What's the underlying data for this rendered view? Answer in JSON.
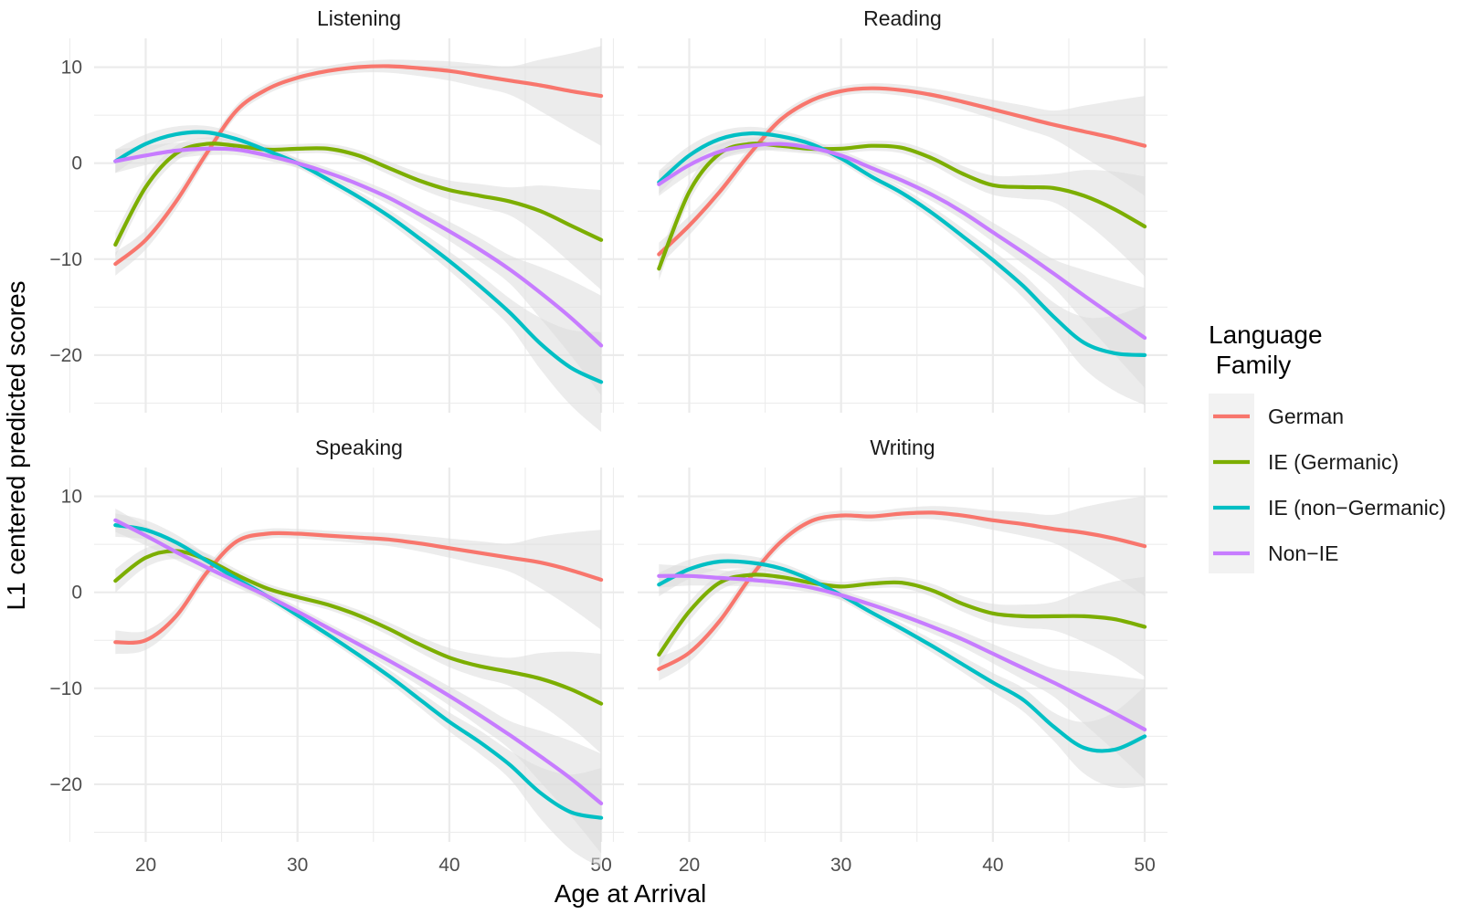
{
  "chart_data": {
    "type": "line",
    "xlabel": "Age at Arrival",
    "ylabel": "L1 centered predicted scores",
    "xlim": [
      16.6,
      51.5
    ],
    "ylim": [
      -26,
      13
    ],
    "x_ticks": [
      20,
      30,
      40,
      50
    ],
    "y_ticks": [
      10,
      0,
      -10,
      -20
    ],
    "y_tick_labels": [
      "10",
      "0",
      "−10",
      "−20"
    ],
    "grid": true,
    "confidence_bands": true,
    "legend": {
      "title": "Language\n Family",
      "placement": "right",
      "entries": [
        "German",
        "IE (Germanic)",
        "IE (non−Germanic)",
        "Non−IE"
      ]
    },
    "colors": {
      "German": "#F8766D",
      "IE (Germanic)": "#7CAE00",
      "IE (non−Germanic)": "#00BFC4",
      "Non−IE": "#C77CFF",
      "band": "#dcdcdc",
      "grid": "#ebebeb"
    },
    "panels": [
      {
        "title": "Listening",
        "series": [
          {
            "name": "German",
            "x": [
              18,
              20,
              22,
              24,
              26,
              28,
              30,
              32,
              34,
              36,
              38,
              40,
              42,
              44,
              46,
              48,
              50
            ],
            "y": [
              -10.5,
              -8,
              -4,
              1,
              5.5,
              7.7,
              8.9,
              9.6,
              10,
              10.1,
              9.9,
              9.6,
              9.1,
              8.6,
              8.1,
              7.5,
              7
            ]
          },
          {
            "name": "IE (Germanic)",
            "x": [
              18,
              20,
              22,
              24,
              26,
              28,
              30,
              32,
              34,
              36,
              38,
              40,
              42,
              44,
              46,
              48,
              50
            ],
            "y": [
              -8.5,
              -2.5,
              1,
              2,
              1.8,
              1.4,
              1.5,
              1.5,
              0.8,
              -0.5,
              -1.8,
              -2.8,
              -3.4,
              -4,
              -5,
              -6.5,
              -8
            ]
          },
          {
            "name": "IE (non−Germanic)",
            "x": [
              18,
              20,
              22,
              24,
              26,
              28,
              30,
              32,
              34,
              36,
              38,
              40,
              42,
              44,
              46,
              48,
              50
            ],
            "y": [
              0.2,
              2,
              3,
              3.2,
              2.5,
              1.3,
              0,
              -1.7,
              -3.5,
              -5.5,
              -7.8,
              -10.2,
              -12.8,
              -15.6,
              -18.8,
              -21.3,
              -22.8
            ]
          },
          {
            "name": "Non−IE",
            "x": [
              18,
              20,
              22,
              24,
              26,
              28,
              30,
              32,
              34,
              36,
              38,
              40,
              42,
              44,
              46,
              48,
              50
            ],
            "y": [
              0.2,
              0.8,
              1.3,
              1.5,
              1.4,
              0.8,
              0,
              -1,
              -2.2,
              -3.6,
              -5.3,
              -7.1,
              -9,
              -11.1,
              -13.5,
              -16.1,
              -19
            ]
          }
        ]
      },
      {
        "title": "Reading",
        "series": [
          {
            "name": "German",
            "x": [
              18,
              20,
              22,
              24,
              26,
              28,
              30,
              32,
              34,
              36,
              38,
              40,
              42,
              44,
              46,
              48,
              50
            ],
            "y": [
              -9.5,
              -6.5,
              -3,
              1,
              4.5,
              6.5,
              7.5,
              7.8,
              7.6,
              7.1,
              6.4,
              5.6,
              4.8,
              4,
              3.3,
              2.6,
              1.8
            ]
          },
          {
            "name": "IE (Germanic)",
            "x": [
              18,
              20,
              22,
              24,
              26,
              28,
              30,
              32,
              34,
              36,
              38,
              40,
              42,
              44,
              46,
              48,
              50
            ],
            "y": [
              -11,
              -3,
              1,
              2,
              1.8,
              1.5,
              1.5,
              1.8,
              1.6,
              0.5,
              -1.1,
              -2.3,
              -2.5,
              -2.6,
              -3.4,
              -4.8,
              -6.6
            ]
          },
          {
            "name": "IE (non−Germanic)",
            "x": [
              18,
              20,
              22,
              24,
              26,
              28,
              30,
              32,
              34,
              36,
              38,
              40,
              42,
              44,
              46,
              48,
              50
            ],
            "y": [
              -2,
              0.8,
              2.5,
              3.1,
              2.8,
              2,
              0.5,
              -1.4,
              -3.1,
              -5.2,
              -7.6,
              -10.1,
              -12.8,
              -16,
              -18.7,
              -19.8,
              -20
            ]
          },
          {
            "name": "Non−IE",
            "x": [
              18,
              20,
              22,
              24,
              26,
              28,
              30,
              32,
              34,
              36,
              38,
              40,
              42,
              44,
              46,
              48,
              50
            ],
            "y": [
              -2.2,
              -0.2,
              1.2,
              1.8,
              2,
              1.6,
              0.8,
              -0.5,
              -1.8,
              -3.3,
              -5.1,
              -7.2,
              -9.3,
              -11.5,
              -13.8,
              -16,
              -18.2
            ]
          }
        ]
      },
      {
        "title": "Speaking",
        "series": [
          {
            "name": "German",
            "x": [
              18,
              20,
              22,
              24,
              26,
              28,
              30,
              32,
              34,
              36,
              38,
              40,
              42,
              44,
              46,
              48,
              50
            ],
            "y": [
              -5.2,
              -5,
              -2.5,
              2,
              5.3,
              6.1,
              6.1,
              5.9,
              5.7,
              5.5,
              5.1,
              4.6,
              4.1,
              3.6,
              3.1,
              2.3,
              1.3
            ]
          },
          {
            "name": "IE (Germanic)",
            "x": [
              18,
              20,
              22,
              24,
              26,
              28,
              30,
              32,
              34,
              36,
              38,
              40,
              42,
              44,
              46,
              48,
              50
            ],
            "y": [
              1.2,
              3.6,
              4.3,
              3.4,
              1.8,
              0.4,
              -0.5,
              -1.3,
              -2.4,
              -3.8,
              -5.4,
              -6.8,
              -7.7,
              -8.3,
              -9,
              -10.1,
              -11.6
            ]
          },
          {
            "name": "IE (non−Germanic)",
            "x": [
              18,
              20,
              22,
              24,
              26,
              28,
              30,
              32,
              34,
              36,
              38,
              40,
              42,
              44,
              46,
              48,
              50
            ],
            "y": [
              7,
              6.5,
              5.2,
              3.3,
              1.4,
              -0.4,
              -2.4,
              -4.4,
              -6.5,
              -8.7,
              -11.1,
              -13.5,
              -15.6,
              -18,
              -20.9,
              -22.9,
              -23.5
            ]
          },
          {
            "name": "Non−IE",
            "x": [
              18,
              20,
              22,
              24,
              26,
              28,
              30,
              32,
              34,
              36,
              38,
              40,
              42,
              44,
              46,
              48,
              50
            ],
            "y": [
              7.5,
              5.9,
              4.2,
              2.6,
              1.1,
              -0.4,
              -2,
              -3.7,
              -5.4,
              -7.1,
              -8.9,
              -10.8,
              -12.8,
              -14.9,
              -17.1,
              -19.4,
              -22
            ]
          }
        ]
      },
      {
        "title": "Writing",
        "series": [
          {
            "name": "German",
            "x": [
              18,
              20,
              22,
              24,
              26,
              28,
              30,
              32,
              34,
              36,
              38,
              40,
              42,
              44,
              46,
              48,
              50
            ],
            "y": [
              -8,
              -6.3,
              -3,
              1.5,
              5.2,
              7.4,
              8,
              7.9,
              8.2,
              8.3,
              8,
              7.5,
              7.1,
              6.6,
              6.2,
              5.6,
              4.8
            ]
          },
          {
            "name": "IE (Germanic)",
            "x": [
              18,
              20,
              22,
              24,
              26,
              28,
              30,
              32,
              34,
              36,
              38,
              40,
              42,
              44,
              46,
              48,
              50
            ],
            "y": [
              -6.5,
              -2,
              1,
              1.8,
              1.6,
              1,
              0.6,
              0.9,
              1,
              0.2,
              -1.2,
              -2.2,
              -2.5,
              -2.5,
              -2.5,
              -2.8,
              -3.6
            ]
          },
          {
            "name": "IE (non−Germanic)",
            "x": [
              18,
              20,
              22,
              24,
              26,
              28,
              30,
              32,
              34,
              36,
              38,
              40,
              42,
              44,
              46,
              48,
              50
            ],
            "y": [
              0.8,
              2.4,
              3.2,
              3.1,
              2.5,
              1.3,
              -0.3,
              -2.1,
              -3.8,
              -5.6,
              -7.5,
              -9.4,
              -11.2,
              -14,
              -16.2,
              -16.4,
              -15
            ]
          },
          {
            "name": "Non−IE",
            "x": [
              18,
              20,
              22,
              24,
              26,
              28,
              30,
              32,
              34,
              36,
              38,
              40,
              42,
              44,
              46,
              48,
              50
            ],
            "y": [
              1.7,
              1.7,
              1.5,
              1.3,
              1,
              0.5,
              -0.3,
              -1.3,
              -2.4,
              -3.6,
              -4.9,
              -6.4,
              -7.9,
              -9.4,
              -11,
              -12.6,
              -14.3
            ]
          }
        ]
      }
    ]
  }
}
